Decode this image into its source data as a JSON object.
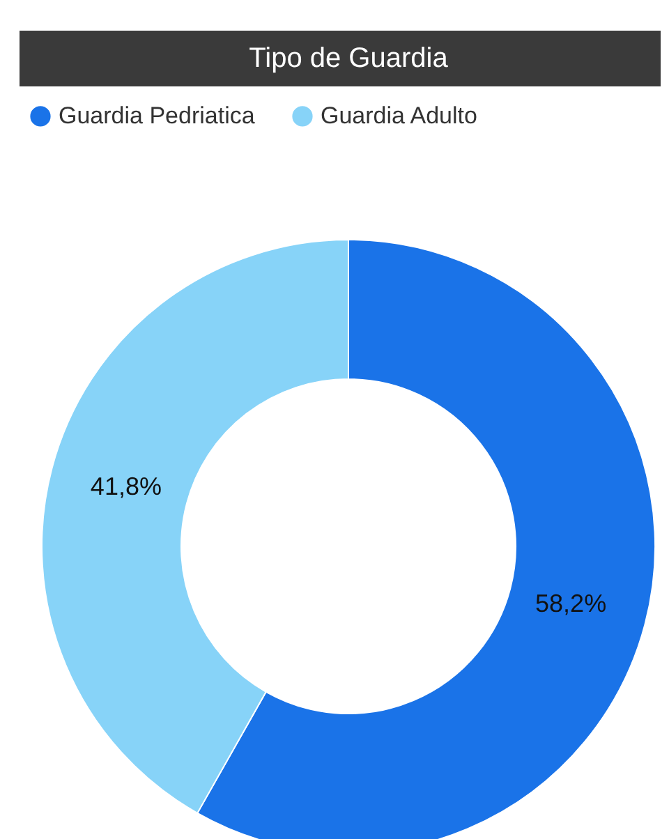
{
  "chart_data": {
    "type": "donut",
    "title": "Tipo de Guardia",
    "categories": [
      "Guardia Pedriatica",
      "Guardia Adulto"
    ],
    "values": [
      58.2,
      41.8
    ],
    "colors": [
      "#1a73e8",
      "#87d3f8"
    ],
    "value_labels": [
      "58,2%",
      "41,8%"
    ],
    "legend": "top"
  }
}
